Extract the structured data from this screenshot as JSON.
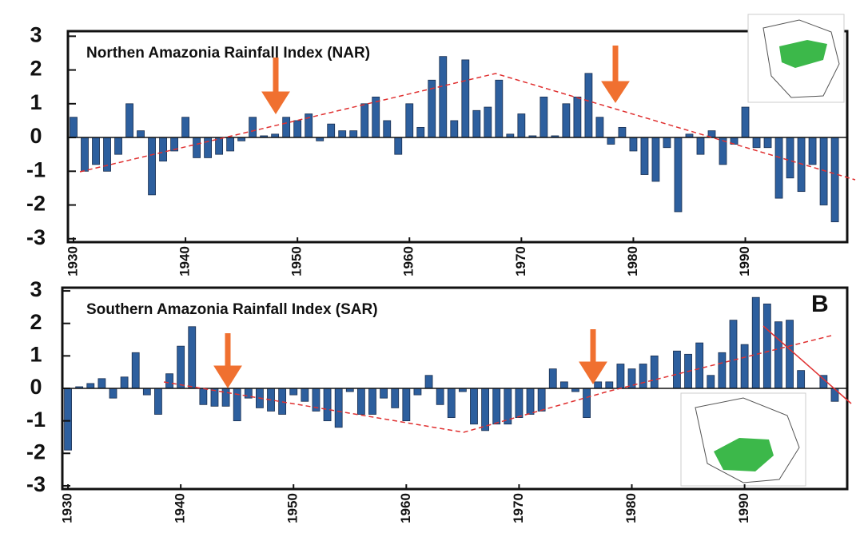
{
  "chart_data": [
    {
      "type": "bar",
      "title": "Northen Amazonia Rainfall Index (NAR)",
      "color": "#2d5f9e",
      "x": [
        1930,
        1931,
        1932,
        1933,
        1934,
        1935,
        1936,
        1937,
        1938,
        1939,
        1940,
        1941,
        1942,
        1943,
        1944,
        1945,
        1946,
        1947,
        1948,
        1949,
        1950,
        1951,
        1952,
        1953,
        1954,
        1955,
        1956,
        1957,
        1958,
        1959,
        1960,
        1961,
        1962,
        1963,
        1964,
        1965,
        1966,
        1967,
        1968,
        1969,
        1970,
        1971,
        1972,
        1973,
        1974,
        1975,
        1976,
        1977,
        1978,
        1979,
        1980,
        1981,
        1982,
        1983,
        1984,
        1985,
        1986,
        1987,
        1988,
        1989,
        1990,
        1991,
        1992,
        1993,
        1994,
        1995,
        1996,
        1997,
        1998
      ],
      "values": [
        0.6,
        -1.0,
        -0.8,
        -1.0,
        -0.5,
        1.0,
        0.2,
        -1.7,
        -0.7,
        -0.4,
        0.6,
        -0.6,
        -0.6,
        -0.5,
        -0.4,
        -0.1,
        0.6,
        0.05,
        0.1,
        0.6,
        0.5,
        0.7,
        -0.1,
        0.4,
        0.2,
        0.2,
        1.0,
        1.2,
        0.5,
        -0.5,
        1.0,
        0.3,
        1.7,
        2.4,
        0.5,
        2.3,
        0.8,
        0.9,
        1.7,
        0.1,
        0.7,
        0.05,
        1.2,
        0.05,
        1.0,
        1.2,
        1.9,
        0.6,
        -0.2,
        0.3,
        -0.4,
        -1.1,
        -1.3,
        -0.3,
        -2.2,
        0.1,
        -0.5,
        0.2,
        -0.8,
        -0.2,
        0.9,
        -0.3,
        -0.3,
        -1.8,
        -1.2,
        -1.6,
        -0.8,
        -2.0,
        -2.5
      ],
      "xlim": [
        1929.5,
        1999.1
      ],
      "xticks": [
        1930,
        1940,
        1950,
        1960,
        1970,
        1980,
        1990
      ],
      "ylim": [
        -3.1,
        3.15
      ],
      "yticks": [
        -3,
        -2,
        -1,
        0,
        1,
        2,
        3
      ]
    },
    {
      "type": "bar",
      "title": "Southern Amazonia Rainfall Index (SAR)",
      "annotation": "B",
      "color": "#2d5f9e",
      "x": [
        1930,
        1931,
        1932,
        1933,
        1934,
        1935,
        1936,
        1937,
        1938,
        1939,
        1940,
        1941,
        1942,
        1943,
        1944,
        1945,
        1946,
        1947,
        1948,
        1949,
        1950,
        1951,
        1952,
        1953,
        1954,
        1955,
        1956,
        1957,
        1958,
        1959,
        1960,
        1961,
        1962,
        1963,
        1964,
        1965,
        1966,
        1967,
        1968,
        1969,
        1970,
        1971,
        1972,
        1973,
        1974,
        1975,
        1976,
        1977,
        1978,
        1979,
        1980,
        1981,
        1982,
        1983,
        1984,
        1985,
        1986,
        1987,
        1988,
        1989,
        1990,
        1991,
        1992,
        1993,
        1994,
        1995,
        1996,
        1997,
        1998
      ],
      "values": [
        -1.9,
        0.05,
        0.15,
        0.3,
        -0.3,
        0.35,
        1.1,
        -0.2,
        -0.8,
        0.45,
        1.3,
        1.9,
        -0.5,
        -0.55,
        -0.55,
        -1.0,
        -0.3,
        -0.6,
        -0.7,
        -0.8,
        -0.2,
        -0.4,
        -0.7,
        -1.0,
        -1.2,
        -0.1,
        -0.8,
        -0.8,
        -0.3,
        -0.6,
        -1.0,
        -0.2,
        0.4,
        -0.5,
        -0.9,
        -0.1,
        -1.1,
        -1.3,
        -1.1,
        -1.1,
        -0.9,
        -0.8,
        -0.7,
        0.6,
        0.2,
        -0.1,
        -0.9,
        0.2,
        0.2,
        0.75,
        0.6,
        0.75,
        1.0,
        0.0,
        1.15,
        1.05,
        1.4,
        0.4,
        1.1,
        2.1,
        1.35,
        2.8,
        2.6,
        2.05,
        2.1,
        0.55,
        0.0,
        0.4,
        -0.4
      ],
      "xlim": [
        1929.5,
        1999.1
      ],
      "xticks": [
        1930,
        1940,
        1950,
        1960,
        1970,
        1980,
        1990
      ],
      "ylim": [
        -3.1,
        3.1
      ],
      "yticks": [
        -3,
        -2,
        -1,
        0,
        1,
        2,
        3
      ]
    }
  ]
}
